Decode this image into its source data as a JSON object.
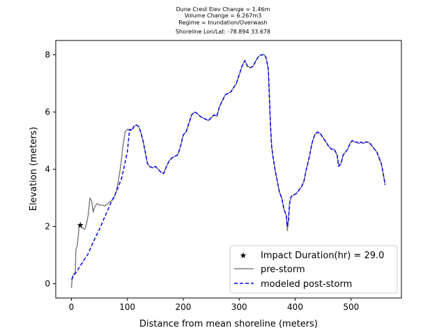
{
  "chart_data": {
    "type": "line",
    "title_lines": [
      "Dune Crest Elev Change = 1.46m",
      "Volume Change = 6.267m3",
      "Regime = Inundation/Overwash",
      "Shoreline Lon/Lat: -78.894 33.678"
    ],
    "xlabel": "Distance from mean shoreline (meters)",
    "ylabel": "Elevation (meters)",
    "xlim": [
      -28,
      590
    ],
    "ylim": [
      -0.5,
      8.5
    ],
    "xticks": [
      0,
      100,
      200,
      300,
      400,
      500
    ],
    "yticks": [
      0,
      2,
      4,
      6,
      8
    ],
    "grid": false,
    "legend_position": "lower right",
    "legend": [
      {
        "label": "Impact Duration(hr) = 29.0",
        "style": "marker",
        "color": "#ff0000"
      },
      {
        "label": "pre-storm",
        "style": "solid",
        "color": "#808080"
      },
      {
        "label": "modeled post-storm",
        "style": "dashed",
        "color": "#0000ff"
      }
    ],
    "impact_point": {
      "x": 16,
      "y": 2.05
    },
    "pre_storm": {
      "color": "#808080",
      "points": [
        [
          0,
          -0.15
        ],
        [
          1,
          0.1
        ],
        [
          3,
          0.3
        ],
        [
          5,
          0.35
        ],
        [
          7,
          0.4
        ],
        [
          8,
          1.2
        ],
        [
          10,
          1.3
        ],
        [
          12,
          1.6
        ],
        [
          14,
          2.05
        ],
        [
          16,
          2.0
        ],
        [
          20,
          1.95
        ],
        [
          24,
          1.9
        ],
        [
          27,
          2.1
        ],
        [
          30,
          2.4
        ],
        [
          33,
          3.0
        ],
        [
          36,
          2.9
        ],
        [
          39,
          2.5
        ],
        [
          42,
          2.7
        ],
        [
          46,
          2.8
        ],
        [
          50,
          2.75
        ],
        [
          55,
          2.75
        ],
        [
          60,
          2.72
        ],
        [
          64,
          2.78
        ],
        [
          68,
          2.85
        ],
        [
          72,
          2.9
        ],
        [
          76,
          3.0
        ],
        [
          80,
          3.2
        ],
        [
          84,
          3.6
        ],
        [
          88,
          4.1
        ],
        [
          92,
          4.8
        ],
        [
          96,
          5.3
        ],
        [
          100,
          5.4
        ],
        [
          104,
          5.35
        ],
        [
          108,
          5.4
        ],
        [
          112,
          5.5
        ],
        [
          116,
          5.55
        ],
        [
          120,
          5.5
        ],
        [
          124,
          5.3
        ],
        [
          128,
          5.0
        ],
        [
          132,
          4.6
        ],
        [
          136,
          4.2
        ],
        [
          140,
          4.1
        ],
        [
          145,
          4.05
        ],
        [
          150,
          4.1
        ],
        [
          155,
          4.0
        ],
        [
          160,
          3.9
        ],
        [
          165,
          3.85
        ],
        [
          170,
          4.1
        ],
        [
          175,
          4.3
        ],
        [
          180,
          4.4
        ],
        [
          185,
          4.45
        ],
        [
          190,
          4.5
        ],
        [
          195,
          4.8
        ],
        [
          200,
          5.2
        ],
        [
          205,
          5.3
        ],
        [
          210,
          5.6
        ],
        [
          215,
          5.9
        ],
        [
          220,
          6.0
        ],
        [
          225,
          5.95
        ],
        [
          230,
          5.85
        ],
        [
          235,
          5.8
        ],
        [
          240,
          5.75
        ],
        [
          245,
          5.7
        ],
        [
          250,
          5.8
        ],
        [
          255,
          5.9
        ],
        [
          260,
          5.85
        ],
        [
          265,
          6.2
        ],
        [
          270,
          6.4
        ],
        [
          275,
          6.6
        ],
        [
          280,
          6.65
        ],
        [
          285,
          6.7
        ],
        [
          290,
          6.85
        ],
        [
          295,
          7.0
        ],
        [
          300,
          7.3
        ],
        [
          305,
          7.6
        ],
        [
          310,
          7.8
        ],
        [
          315,
          7.6
        ],
        [
          320,
          7.55
        ],
        [
          325,
          7.6
        ],
        [
          330,
          7.8
        ],
        [
          335,
          7.95
        ],
        [
          340,
          8.0
        ],
        [
          345,
          8.0
        ],
        [
          348,
          7.9
        ],
        [
          352,
          7.5
        ],
        [
          354,
          6.5
        ],
        [
          356,
          5.5
        ],
        [
          358,
          4.8
        ],
        [
          360,
          4.5
        ],
        [
          364,
          4.0
        ],
        [
          368,
          3.6
        ],
        [
          372,
          3.2
        ],
        [
          376,
          3.0
        ],
        [
          380,
          2.6
        ],
        [
          384,
          2.4
        ],
        [
          386,
          1.85
        ],
        [
          388,
          2.2
        ],
        [
          390,
          2.8
        ],
        [
          393,
          3.05
        ],
        [
          397,
          3.1
        ],
        [
          402,
          3.15
        ],
        [
          408,
          3.3
        ],
        [
          412,
          3.4
        ],
        [
          416,
          3.6
        ],
        [
          420,
          4.0
        ],
        [
          425,
          4.4
        ],
        [
          430,
          4.9
        ],
        [
          435,
          5.2
        ],
        [
          440,
          5.3
        ],
        [
          445,
          5.25
        ],
        [
          450,
          5.1
        ],
        [
          455,
          4.95
        ],
        [
          460,
          4.8
        ],
        [
          465,
          4.7
        ],
        [
          470,
          4.7
        ],
        [
          475,
          4.5
        ],
        [
          478,
          4.1
        ],
        [
          482,
          4.2
        ],
        [
          486,
          4.5
        ],
        [
          490,
          4.6
        ],
        [
          494,
          4.7
        ],
        [
          498,
          4.9
        ],
        [
          502,
          5.0
        ],
        [
          506,
          4.95
        ],
        [
          510,
          4.95
        ],
        [
          514,
          4.9
        ],
        [
          518,
          4.95
        ],
        [
          522,
          4.9
        ],
        [
          526,
          4.95
        ],
        [
          530,
          4.95
        ],
        [
          534,
          4.9
        ],
        [
          538,
          4.8
        ],
        [
          542,
          4.7
        ],
        [
          546,
          4.6
        ],
        [
          550,
          4.4
        ],
        [
          554,
          4.2
        ],
        [
          558,
          3.8
        ],
        [
          561,
          3.45
        ]
      ]
    },
    "post_storm": {
      "color": "#0000ff",
      "points": [
        [
          0,
          0.15
        ],
        [
          10,
          0.45
        ],
        [
          20,
          0.75
        ],
        [
          30,
          1.05
        ],
        [
          40,
          1.5
        ],
        [
          50,
          1.9
        ],
        [
          60,
          2.35
        ],
        [
          70,
          2.8
        ],
        [
          80,
          3.2
        ],
        [
          90,
          3.7
        ],
        [
          100,
          4.6
        ],
        [
          104,
          5.4
        ],
        [
          108,
          5.35
        ],
        [
          112,
          5.5
        ],
        [
          116,
          5.55
        ],
        [
          120,
          5.5
        ],
        [
          124,
          5.3
        ],
        [
          128,
          5.0
        ],
        [
          132,
          4.6
        ],
        [
          136,
          4.2
        ],
        [
          140,
          4.1
        ],
        [
          145,
          4.05
        ],
        [
          150,
          4.1
        ],
        [
          155,
          4.0
        ],
        [
          160,
          3.9
        ],
        [
          165,
          3.85
        ],
        [
          170,
          4.1
        ],
        [
          175,
          4.3
        ],
        [
          180,
          4.4
        ],
        [
          185,
          4.45
        ],
        [
          190,
          4.5
        ],
        [
          195,
          4.8
        ],
        [
          200,
          5.2
        ],
        [
          205,
          5.3
        ],
        [
          210,
          5.6
        ],
        [
          215,
          5.9
        ],
        [
          220,
          6.0
        ],
        [
          225,
          5.95
        ],
        [
          230,
          5.85
        ],
        [
          235,
          5.8
        ],
        [
          240,
          5.75
        ],
        [
          245,
          5.7
        ],
        [
          250,
          5.8
        ],
        [
          255,
          5.9
        ],
        [
          260,
          5.85
        ],
        [
          265,
          6.2
        ],
        [
          270,
          6.4
        ],
        [
          275,
          6.6
        ],
        [
          280,
          6.65
        ],
        [
          285,
          6.7
        ],
        [
          290,
          6.85
        ],
        [
          295,
          7.0
        ],
        [
          300,
          7.3
        ],
        [
          305,
          7.6
        ],
        [
          310,
          7.8
        ],
        [
          315,
          7.6
        ],
        [
          320,
          7.55
        ],
        [
          325,
          7.6
        ],
        [
          330,
          7.8
        ],
        [
          335,
          7.95
        ],
        [
          340,
          8.0
        ],
        [
          345,
          8.0
        ],
        [
          348,
          7.9
        ],
        [
          352,
          7.5
        ],
        [
          354,
          6.5
        ],
        [
          356,
          5.5
        ],
        [
          358,
          4.8
        ],
        [
          360,
          4.5
        ],
        [
          364,
          4.0
        ],
        [
          368,
          3.6
        ],
        [
          372,
          3.2
        ],
        [
          376,
          3.0
        ],
        [
          380,
          2.6
        ],
        [
          384,
          2.4
        ],
        [
          386,
          2.0
        ],
        [
          388,
          2.2
        ],
        [
          390,
          2.8
        ],
        [
          393,
          3.05
        ],
        [
          397,
          3.1
        ],
        [
          402,
          3.15
        ],
        [
          408,
          3.3
        ],
        [
          412,
          3.4
        ],
        [
          416,
          3.6
        ],
        [
          420,
          4.0
        ],
        [
          425,
          4.4
        ],
        [
          430,
          4.9
        ],
        [
          435,
          5.2
        ],
        [
          440,
          5.3
        ],
        [
          445,
          5.25
        ],
        [
          450,
          5.1
        ],
        [
          455,
          4.95
        ],
        [
          460,
          4.8
        ],
        [
          465,
          4.7
        ],
        [
          470,
          4.7
        ],
        [
          475,
          4.5
        ],
        [
          478,
          4.1
        ],
        [
          482,
          4.2
        ],
        [
          486,
          4.5
        ],
        [
          490,
          4.6
        ],
        [
          494,
          4.7
        ],
        [
          498,
          4.9
        ],
        [
          502,
          5.0
        ],
        [
          506,
          4.95
        ],
        [
          510,
          4.95
        ],
        [
          514,
          4.9
        ],
        [
          518,
          4.95
        ],
        [
          522,
          4.9
        ],
        [
          526,
          4.95
        ],
        [
          530,
          4.95
        ],
        [
          534,
          4.9
        ],
        [
          538,
          4.8
        ],
        [
          542,
          4.7
        ],
        [
          546,
          4.6
        ],
        [
          550,
          4.4
        ],
        [
          554,
          4.2
        ],
        [
          558,
          3.8
        ],
        [
          561,
          3.45
        ]
      ]
    }
  }
}
